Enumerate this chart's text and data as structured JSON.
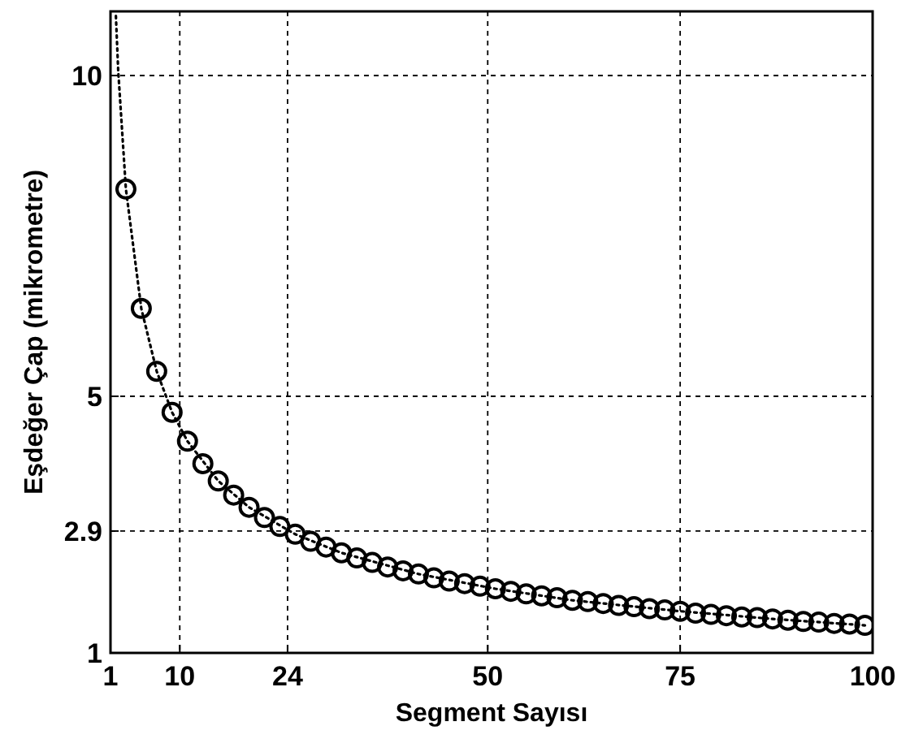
{
  "chart_data": {
    "type": "scatter",
    "xlabel": "Segment Sayısı",
    "ylabel": "Eşdeğer Çap (mikrometre)",
    "xlim": [
      1,
      100
    ],
    "xticks": [
      1,
      10,
      24,
      50,
      75,
      100
    ],
    "ylim": [
      1,
      11
    ],
    "yticks": [
      1,
      2.9,
      5,
      10
    ],
    "grid": true,
    "series": [
      {
        "type": "line",
        "color": "#000000",
        "line_style": "dotted",
        "marker": "none",
        "x": [
          1.7,
          2,
          3,
          5,
          7,
          9,
          11,
          15,
          19,
          25,
          31,
          41,
          51,
          61,
          75,
          87,
          99
        ],
        "values": [
          10.93,
          10.08,
          8.23,
          6.37,
          5.39,
          4.75,
          4.3,
          3.68,
          3.27,
          2.85,
          2.56,
          2.23,
          2.0,
          1.82,
          1.65,
          1.53,
          1.43
        ]
      },
      {
        "color": "#000000",
        "marker": "circle",
        "x": [
          3,
          5,
          7,
          9,
          11,
          13,
          15,
          17,
          19,
          21,
          23,
          25,
          27,
          29,
          31,
          33,
          35,
          37,
          39,
          41,
          43,
          45,
          47,
          49,
          51,
          53,
          55,
          57,
          59,
          61,
          63,
          65,
          67,
          69,
          71,
          73,
          75,
          77,
          79,
          81,
          83,
          85,
          87,
          89,
          91,
          93,
          95,
          97,
          99
        ],
        "values": [
          8.23,
          6.37,
          5.39,
          4.75,
          4.3,
          3.95,
          3.68,
          3.46,
          3.27,
          3.11,
          2.97,
          2.85,
          2.74,
          2.65,
          2.56,
          2.48,
          2.41,
          2.34,
          2.28,
          2.23,
          2.17,
          2.12,
          2.08,
          2.04,
          2.0,
          1.96,
          1.92,
          1.89,
          1.86,
          1.82,
          1.8,
          1.77,
          1.74,
          1.72,
          1.69,
          1.67,
          1.65,
          1.62,
          1.6,
          1.58,
          1.56,
          1.55,
          1.53,
          1.51,
          1.49,
          1.48,
          1.46,
          1.45,
          1.43
        ]
      }
    ]
  }
}
